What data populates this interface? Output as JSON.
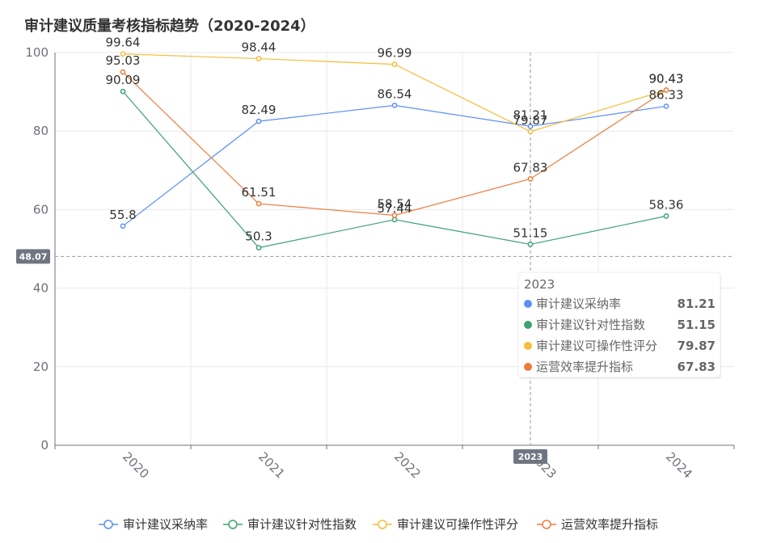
{
  "chart_data": {
    "type": "line",
    "title": "审计建议质量考核指标趋势（2020-2024）",
    "categories": [
      "2020",
      "2021",
      "2022",
      "2023",
      "2024"
    ],
    "ylim": [
      0,
      100
    ],
    "yticks": [
      0,
      20,
      40,
      60,
      80,
      100
    ],
    "series": [
      {
        "name": "审计建议采纳率",
        "color": "#5b8ff9",
        "values": [
          55.8,
          82.49,
          86.54,
          81.21,
          86.33
        ]
      },
      {
        "name": "审计建议针对性指数",
        "color": "#3ba272",
        "values": [
          90.09,
          50.3,
          57.44,
          51.15,
          58.36
        ]
      },
      {
        "name": "审计建议可操作性评分",
        "color": "#f5bd3b",
        "values": [
          99.64,
          98.44,
          96.99,
          79.87,
          90.43
        ]
      },
      {
        "name": "运营效率提升指标",
        "color": "#ee7b3a",
        "values": [
          95.03,
          61.51,
          58.54,
          67.83,
          90.43
        ]
      }
    ],
    "crosshair": {
      "y_value_label": "48.07",
      "x_category_label": "2023"
    },
    "tooltip": {
      "title": "2023",
      "rows": [
        {
          "name": "审计建议采纳率",
          "value": "81.21",
          "color": "#5b8ff9"
        },
        {
          "name": "审计建议针对性指数",
          "value": "51.15",
          "color": "#3ba272"
        },
        {
          "name": "审计建议可操作性评分",
          "value": "79.87",
          "color": "#f5bd3b"
        },
        {
          "name": "运营效率提升指标",
          "value": "67.83",
          "color": "#ee7b3a"
        }
      ]
    },
    "legend_position": "bottom"
  }
}
